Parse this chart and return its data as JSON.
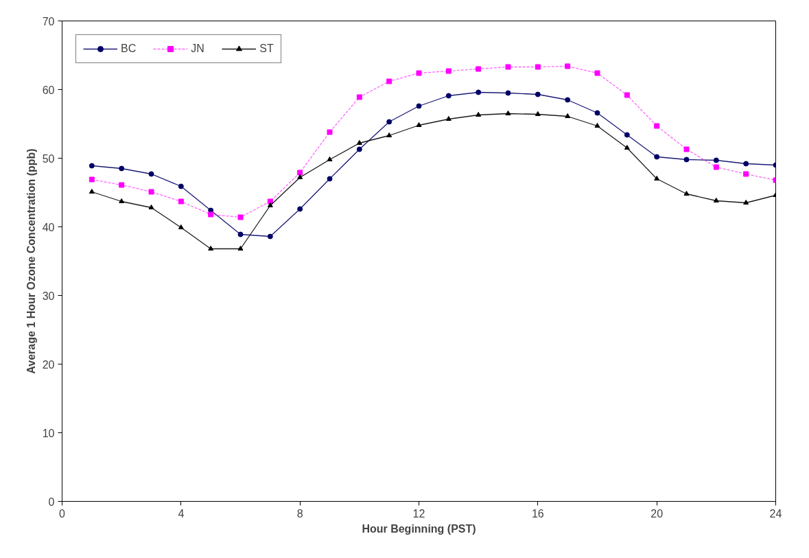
{
  "chart_data": {
    "type": "line",
    "xlabel": "Hour Beginning (PST)",
    "ylabel": "Average 1 Hour Ozone Concentration (ppb)",
    "x": [
      1,
      2,
      3,
      4,
      5,
      6,
      7,
      8,
      9,
      10,
      11,
      12,
      13,
      14,
      15,
      16,
      17,
      18,
      19,
      20,
      21,
      22,
      23,
      24
    ],
    "xlim": [
      0,
      24
    ],
    "xticks": [
      0,
      4,
      8,
      12,
      16,
      20,
      24
    ],
    "ylim": [
      0,
      70
    ],
    "yticks": [
      0,
      10,
      20,
      30,
      40,
      50,
      60,
      70
    ],
    "grid": false,
    "legend": "top left",
    "series": [
      {
        "name": "BC",
        "color": "#000066",
        "marker": "circle",
        "line_style": "solid",
        "values": [
          48.9,
          48.5,
          47.7,
          45.9,
          42.4,
          38.9,
          38.6,
          42.6,
          47.0,
          51.3,
          55.3,
          57.6,
          59.1,
          59.6,
          59.5,
          59.3,
          58.5,
          56.6,
          53.4,
          50.2,
          49.8,
          49.7,
          49.2,
          49.0
        ]
      },
      {
        "name": "JN",
        "color": "#ff00ff",
        "marker": "square",
        "line_style": "dashed",
        "values": [
          46.9,
          46.1,
          45.1,
          43.7,
          41.8,
          41.4,
          43.7,
          47.9,
          53.8,
          58.9,
          61.2,
          62.4,
          62.7,
          63.0,
          63.3,
          63.3,
          63.4,
          62.4,
          59.2,
          54.7,
          51.3,
          48.7,
          47.7,
          46.8
        ]
      },
      {
        "name": "ST",
        "color": "#000000",
        "marker": "triangle",
        "line_style": "solid",
        "values": [
          45.1,
          43.7,
          42.8,
          39.9,
          36.8,
          36.8,
          43.1,
          47.2,
          49.8,
          52.2,
          53.3,
          54.8,
          55.7,
          56.3,
          56.5,
          56.4,
          56.1,
          54.7,
          51.5,
          47.0,
          44.8,
          43.8,
          43.5,
          44.6
        ]
      }
    ]
  }
}
